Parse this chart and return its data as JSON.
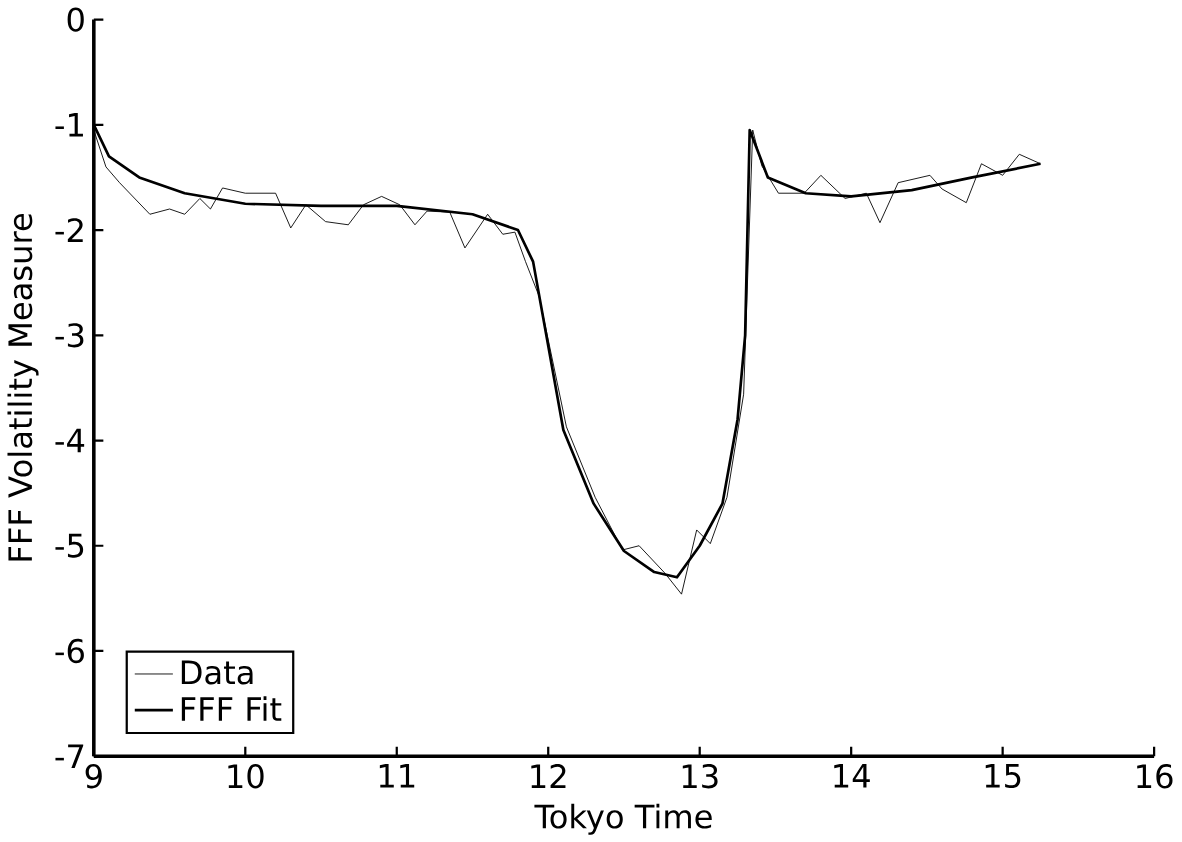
{
  "chart_data": {
    "type": "line",
    "xlabel": "Tokyo Time",
    "ylabel": "FFF Volatility Measure",
    "xlim": [
      9,
      16
    ],
    "ylim": [
      -7,
      0
    ],
    "xticks": [
      9,
      10,
      11,
      12,
      13,
      14,
      15,
      16
    ],
    "yticks": [
      -7,
      -6,
      -5,
      -4,
      -3,
      -2,
      -1,
      0
    ],
    "legend": "bottom left",
    "grid": false,
    "marker": "none",
    "series": [
      {
        "name": "Data",
        "color": "#000000",
        "line_style": "solid",
        "x": [
          9.0,
          9.08,
          9.17,
          9.37,
          9.5,
          9.6,
          9.7,
          9.77,
          9.85,
          10.0,
          10.2,
          10.3,
          10.4,
          10.53,
          10.68,
          10.78,
          10.9,
          11.02,
          11.12,
          11.2,
          11.35,
          11.45,
          11.6,
          11.7,
          11.78,
          11.85,
          11.94,
          12.12,
          12.31,
          12.49,
          12.6,
          12.77,
          12.88,
          12.98,
          13.07,
          13.18,
          13.29,
          13.35,
          13.41,
          13.52,
          13.69,
          13.8,
          13.96,
          14.1,
          14.19,
          14.31,
          14.52,
          14.6,
          14.76,
          14.86,
          15.0,
          15.11,
          15.25
        ],
        "values": [
          -1.05,
          -1.4,
          -1.55,
          -1.85,
          -1.8,
          -1.85,
          -1.7,
          -1.8,
          -1.6,
          -1.65,
          -1.65,
          -1.98,
          -1.76,
          -1.92,
          -1.95,
          -1.76,
          -1.68,
          -1.76,
          -1.95,
          -1.82,
          -1.83,
          -2.17,
          -1.85,
          -2.04,
          -2.02,
          -2.3,
          -2.63,
          -3.87,
          -4.54,
          -5.04,
          -5.0,
          -5.26,
          -5.46,
          -4.85,
          -4.98,
          -4.54,
          -3.56,
          -1.05,
          -1.39,
          -1.65,
          -1.65,
          -1.48,
          -1.7,
          -1.65,
          -1.93,
          -1.55,
          -1.48,
          -1.61,
          -1.74,
          -1.37,
          -1.48,
          -1.28,
          -1.37
        ]
      },
      {
        "name": "FFF Fit",
        "color": "#000000",
        "line_style": "solid",
        "x": [
          9.0,
          9.1,
          9.3,
          9.6,
          10.0,
          10.5,
          11.0,
          11.5,
          11.8,
          11.9,
          12.1,
          12.3,
          12.5,
          12.7,
          12.85,
          13.0,
          13.15,
          13.25,
          13.3,
          13.33,
          13.45,
          13.7,
          14.0,
          14.4,
          14.8,
          15.25
        ],
        "values": [
          -1.0,
          -1.3,
          -1.5,
          -1.65,
          -1.75,
          -1.77,
          -1.77,
          -1.85,
          -2.0,
          -2.3,
          -3.9,
          -4.6,
          -5.05,
          -5.25,
          -5.3,
          -5.0,
          -4.6,
          -3.8,
          -3.0,
          -1.05,
          -1.5,
          -1.65,
          -1.68,
          -1.62,
          -1.5,
          -1.37
        ]
      }
    ]
  }
}
